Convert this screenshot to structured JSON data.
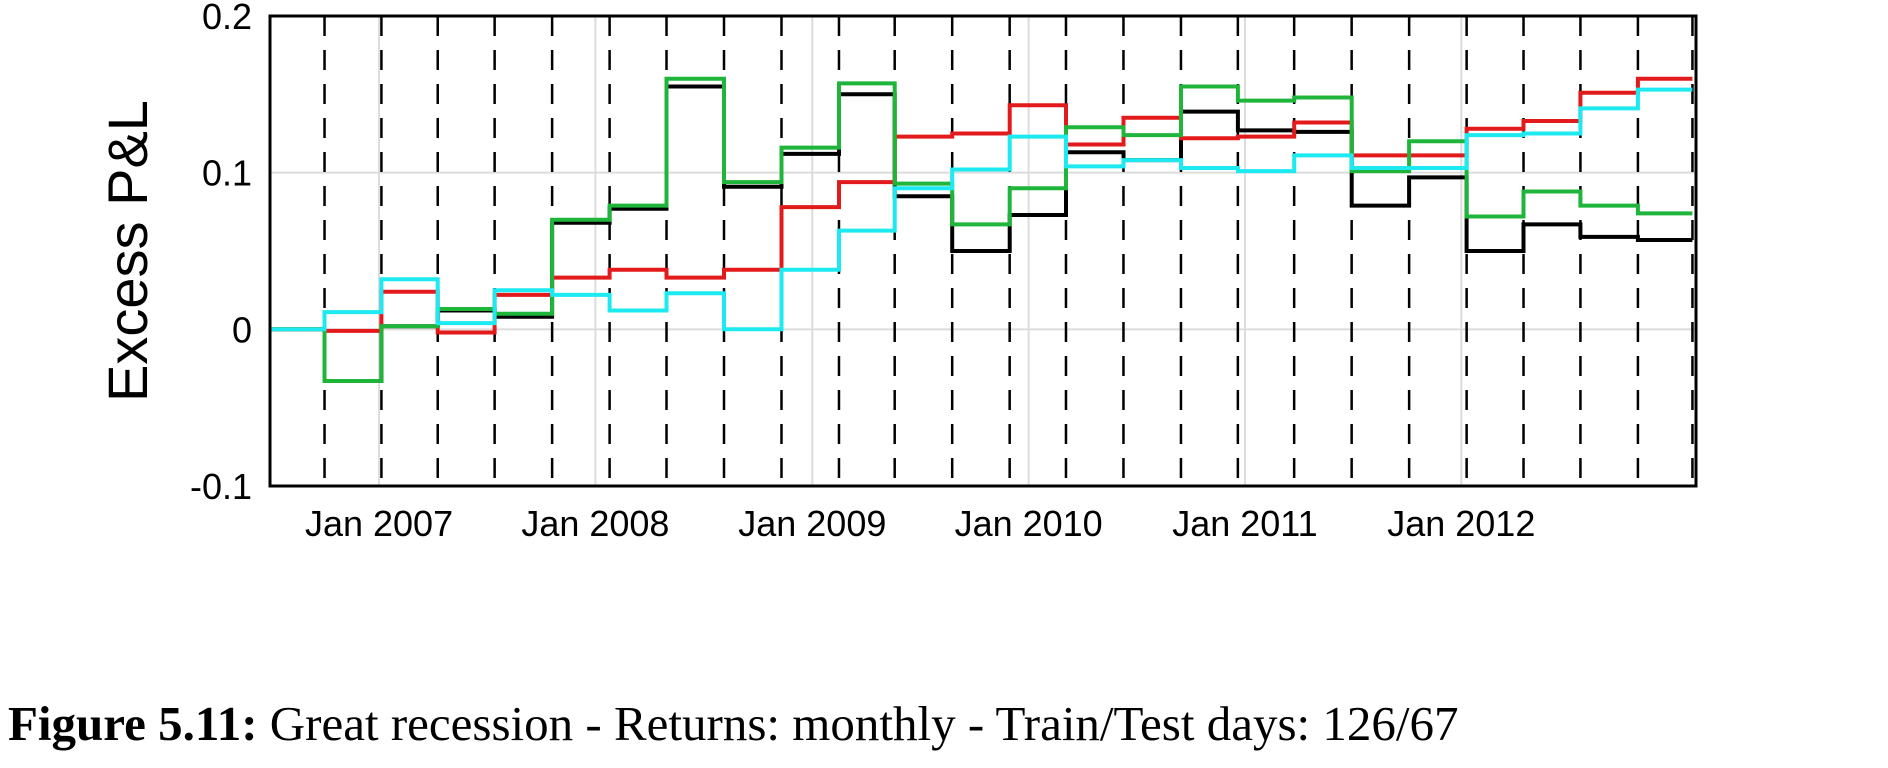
{
  "chart_data": {
    "type": "line",
    "step": true,
    "title": "",
    "xlabel": "",
    "ylabel": "Excess P&L",
    "ylim": [
      -0.1,
      0.2
    ],
    "yticks": [
      -0.1,
      0,
      0.1,
      0.2
    ],
    "ytick_labels": [
      "-0.1",
      "0",
      "0.1",
      "0.2"
    ],
    "xlim": [
      "2006-07-01",
      "2013-01-31"
    ],
    "xticks": [
      "2007-01-01",
      "2008-01-01",
      "2009-01-01",
      "2010-01-01",
      "2011-01-01",
      "2012-01-01"
    ],
    "xtick_labels": [
      "Jan 2007",
      "Jan 2008",
      "Jan 2009",
      "Jan 2010",
      "Jan 2011",
      "Jan 2012"
    ],
    "grid": true,
    "test_window_starts": [
      "2006-10-01",
      "2007-01-05",
      "2007-04-10",
      "2007-07-15",
      "2007-10-20",
      "2008-01-25",
      "2008-04-30",
      "2008-08-05",
      "2008-11-10",
      "2009-02-15",
      "2009-05-20",
      "2009-08-25",
      "2009-11-30",
      "2010-03-05",
      "2010-06-10",
      "2010-09-15",
      "2010-12-20",
      "2011-03-25",
      "2011-06-30",
      "2011-10-05",
      "2012-01-10",
      "2012-04-15",
      "2012-07-20",
      "2012-10-25",
      "2013-01-25"
    ],
    "x": [
      "2006-07-01",
      "2006-10-01",
      "2007-01-05",
      "2007-04-10",
      "2007-07-15",
      "2007-10-20",
      "2008-01-25",
      "2008-04-30",
      "2008-08-05",
      "2008-11-10",
      "2009-02-15",
      "2009-05-20",
      "2009-08-25",
      "2009-11-30",
      "2010-03-05",
      "2010-06-10",
      "2010-09-15",
      "2010-12-20",
      "2011-03-25",
      "2011-06-30",
      "2011-10-05",
      "2012-01-10",
      "2012-04-15",
      "2012-07-20",
      "2012-10-25",
      "2013-01-25"
    ],
    "series": [
      {
        "color": "#000000",
        "values": [
          0,
          -0.033,
          0.002,
          0.012,
          0.008,
          0.068,
          0.077,
          0.155,
          0.091,
          0.112,
          0.15,
          0.085,
          0.05,
          0.073,
          0.113,
          0.108,
          0.139,
          0.127,
          0.126,
          0.079,
          0.097,
          0.05,
          0.067,
          0.059,
          0.057,
          0.057
        ]
      },
      {
        "color": "#e31a1c",
        "values": [
          0,
          -0.001,
          0.024,
          -0.002,
          0.022,
          0.033,
          0.038,
          0.033,
          0.038,
          0.078,
          0.094,
          0.123,
          0.125,
          0.143,
          0.118,
          0.135,
          0.122,
          0.123,
          0.132,
          0.111,
          0.111,
          0.128,
          0.133,
          0.151,
          0.16,
          0.16
        ]
      },
      {
        "color": "#1fb53a",
        "values": [
          0,
          -0.033,
          0.002,
          0.013,
          0.01,
          0.07,
          0.079,
          0.16,
          0.094,
          0.116,
          0.157,
          0.093,
          0.067,
          0.09,
          0.129,
          0.124,
          0.155,
          0.146,
          0.148,
          0.101,
          0.12,
          0.072,
          0.088,
          0.079,
          0.074,
          0.074
        ]
      },
      {
        "color": "#1de9f0",
        "values": [
          0,
          0.011,
          0.032,
          0.004,
          0.025,
          0.022,
          0.012,
          0.023,
          0.0,
          0.038,
          0.063,
          0.09,
          0.102,
          0.123,
          0.104,
          0.108,
          0.103,
          0.101,
          0.111,
          0.103,
          0.103,
          0.124,
          0.125,
          0.141,
          0.153,
          0.153
        ]
      }
    ]
  },
  "caption": {
    "label": "Figure 5.11:",
    "text": "Great recession - Returns: monthly - Train/Test days: 126/67"
  }
}
